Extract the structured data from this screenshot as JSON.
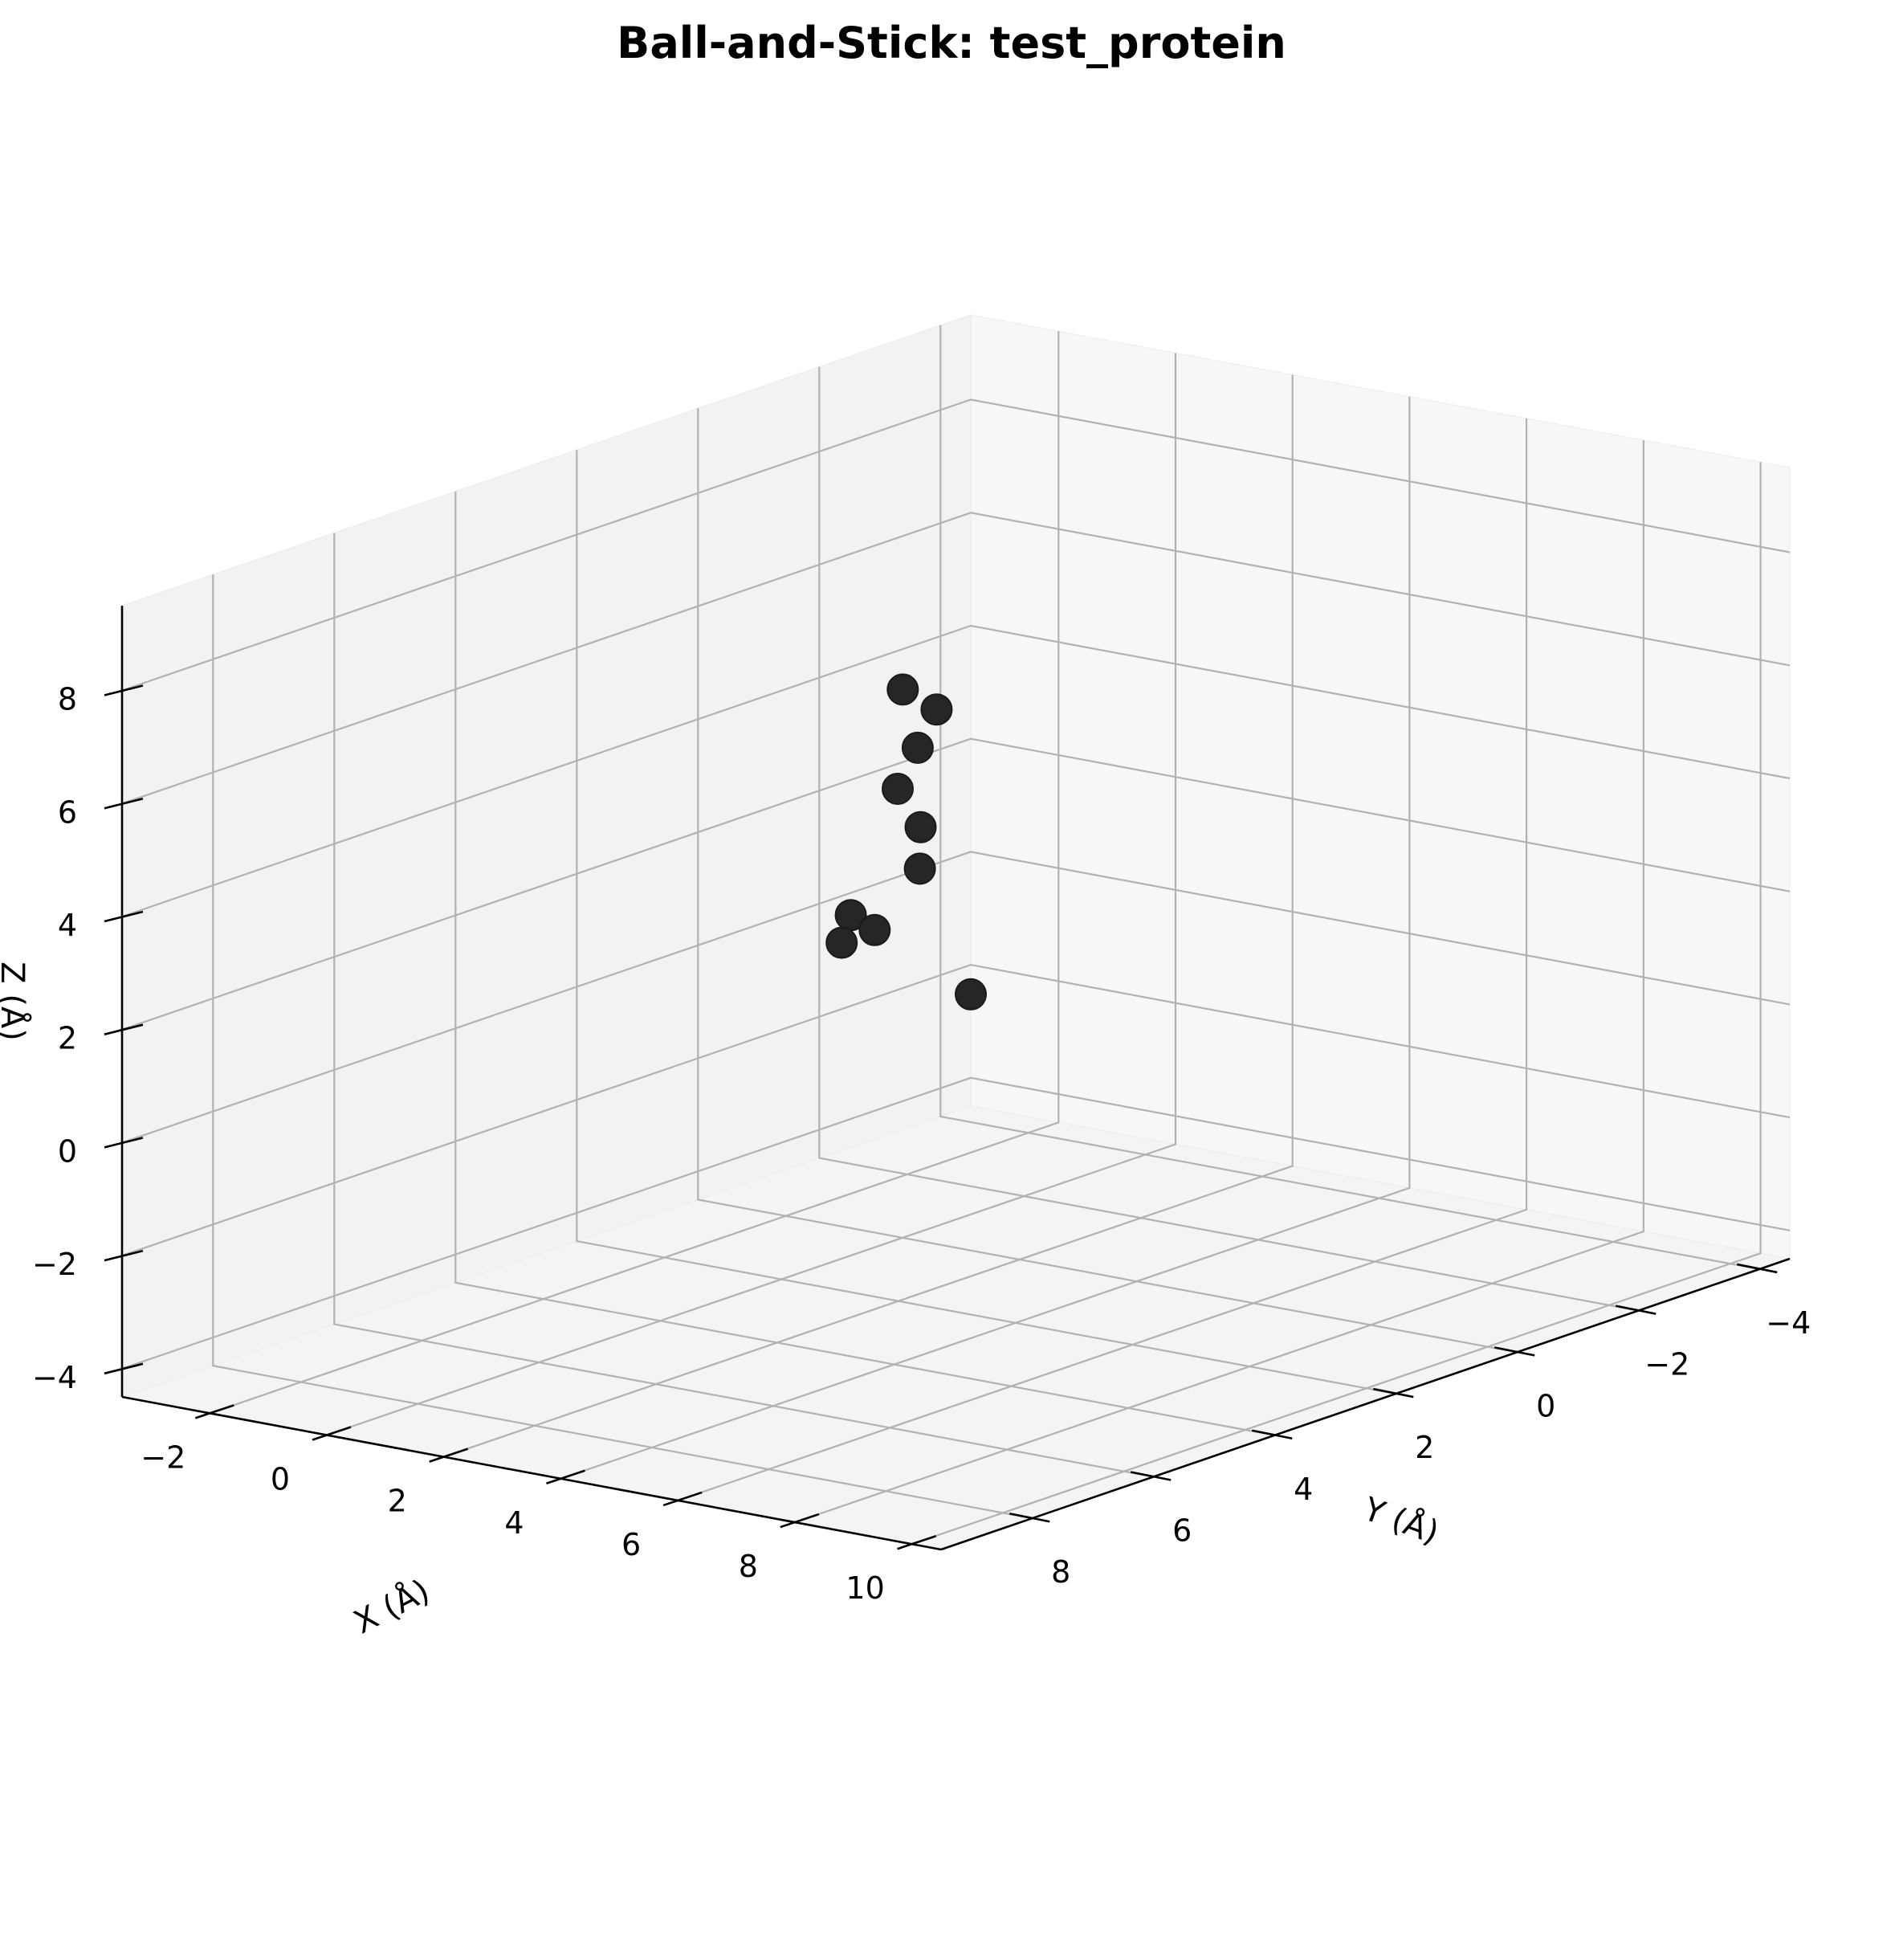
{
  "chart_data": {
    "type": "scatter",
    "title": "Ball-and-Stick: test_protein",
    "xlabel": "X (Å)",
    "ylabel": "Y (Å)",
    "zlabel": "Z (Å)",
    "xlim": [
      -3.5,
      10.5
    ],
    "ylim": [
      -4.5,
      9.5
    ],
    "zlim": [
      -4.5,
      9.5
    ],
    "xticks": [
      "−2",
      "0",
      "2",
      "4",
      "6",
      "8",
      "10"
    ],
    "yticks": [
      "−4",
      "−2",
      "0",
      "2",
      "4",
      "6",
      "8"
    ],
    "zticks": [
      "−4",
      "−2",
      "0",
      "2",
      "4",
      "6",
      "8"
    ],
    "grid": true,
    "colors": {
      "atom": "#262626",
      "pane_left": "#f2f2f2",
      "pane_right": "#f7f7f7",
      "pane_floor": "#f4f4f4"
    },
    "points": [
      {
        "x": 0.0,
        "y": 0.0,
        "z": 5.2
      },
      {
        "x": 1.2,
        "y": 0.6,
        "z": 5.3
      },
      {
        "x": 1.5,
        "y": 1.2,
        "z": 4.9
      },
      {
        "x": -0.5,
        "y": -0.4,
        "z": 3.2
      },
      {
        "x": 0.5,
        "y": 0.2,
        "z": 2.2
      },
      {
        "x": 1.6,
        "y": 2.4,
        "z": 2.4
      },
      {
        "x": 1.8,
        "y": 2.2,
        "z": 2.1
      },
      {
        "x": 0.2,
        "y": 1.2,
        "z": 1.2
      },
      {
        "x": 2.2,
        "y": 1.0,
        "z": 0.6
      },
      {
        "x": 3.0,
        "y": 2.6,
        "z": 4.3
      }
    ]
  }
}
